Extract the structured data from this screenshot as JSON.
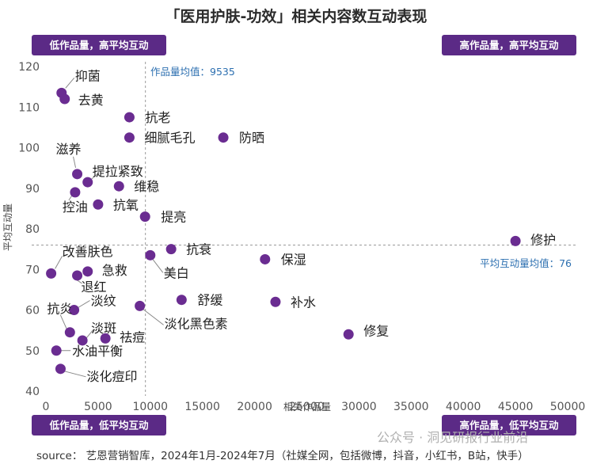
{
  "chart_data": {
    "type": "scatter",
    "title": "「医用护肤-功效」相关内容数互动表现",
    "xlabel": "相关作品量",
    "ylabel": "平均互动量",
    "xlim": [
      0,
      50000
    ],
    "ylim": [
      40,
      120
    ],
    "x_ticks": [
      "0",
      "5000",
      "10000",
      "15000",
      "20000",
      "25000",
      "30000",
      "35000",
      "40000",
      "45000",
      "50000"
    ],
    "y_ticks": [
      "40",
      "50",
      "60",
      "70",
      "80",
      "90",
      "100",
      "110",
      "120"
    ],
    "grid": false,
    "marker_color": "#6a2c91",
    "x_mean": {
      "value": 9535,
      "label": "作品量均值：9535"
    },
    "y_mean": {
      "value": 76,
      "label": "平均互动量均值：76"
    },
    "quadrants": {
      "top_left": "低作品量，高平均互动",
      "top_right": "高作品量，高平均互动",
      "bottom_left": "低作品量，低平均互动",
      "bottom_right": "高作品量，低平均互动"
    },
    "points": [
      {
        "name": "抑菌",
        "x": 1500,
        "y": 113.5
      },
      {
        "name": "去黄",
        "x": 1800,
        "y": 112
      },
      {
        "name": "抗老",
        "x": 8000,
        "y": 107.5
      },
      {
        "name": "细腻毛孔",
        "x": 8000,
        "y": 102.5
      },
      {
        "name": "防晒",
        "x": 17000,
        "y": 102.5
      },
      {
        "name": "滋养",
        "x": 3000,
        "y": 93.5
      },
      {
        "name": "提拉紧致",
        "x": 4000,
        "y": 91.5
      },
      {
        "name": "维稳",
        "x": 7000,
        "y": 90.5
      },
      {
        "name": "控油",
        "x": 2800,
        "y": 89
      },
      {
        "name": "抗氧",
        "x": 5000,
        "y": 86
      },
      {
        "name": "提亮",
        "x": 9500,
        "y": 83
      },
      {
        "name": "修护",
        "x": 45000,
        "y": 77
      },
      {
        "name": "抗衰",
        "x": 12000,
        "y": 75
      },
      {
        "name": "美白",
        "x": 10000,
        "y": 73.5
      },
      {
        "name": "保湿",
        "x": 21000,
        "y": 72.5
      },
      {
        "name": "改善肤色",
        "x": 500,
        "y": 69
      },
      {
        "name": "急救",
        "x": 4000,
        "y": 69.5
      },
      {
        "name": "退红",
        "x": 3000,
        "y": 68.5
      },
      {
        "name": "舒缓",
        "x": 13000,
        "y": 62.5
      },
      {
        "name": "补水",
        "x": 22000,
        "y": 62
      },
      {
        "name": "淡化黑色素",
        "x": 9000,
        "y": 61
      },
      {
        "name": "淡纹",
        "x": 2700,
        "y": 60
      },
      {
        "name": "抗炎",
        "x": 2300,
        "y": 54.5
      },
      {
        "name": "淡斑",
        "x": 3500,
        "y": 52.5
      },
      {
        "name": "祛痘",
        "x": 5700,
        "y": 53
      },
      {
        "name": "修复",
        "x": 29000,
        "y": 54
      },
      {
        "name": "水油平衡",
        "x": 1000,
        "y": 50
      },
      {
        "name": "淡化痘印",
        "x": 1400,
        "y": 45.5
      }
    ]
  },
  "source": "source： 艺恩营销智库，2024年1月-2024年7月（社媒全网，包括微博，抖音，小红书，B站，快手）",
  "watermark": "公众号 · 洞见研报行业前沿"
}
